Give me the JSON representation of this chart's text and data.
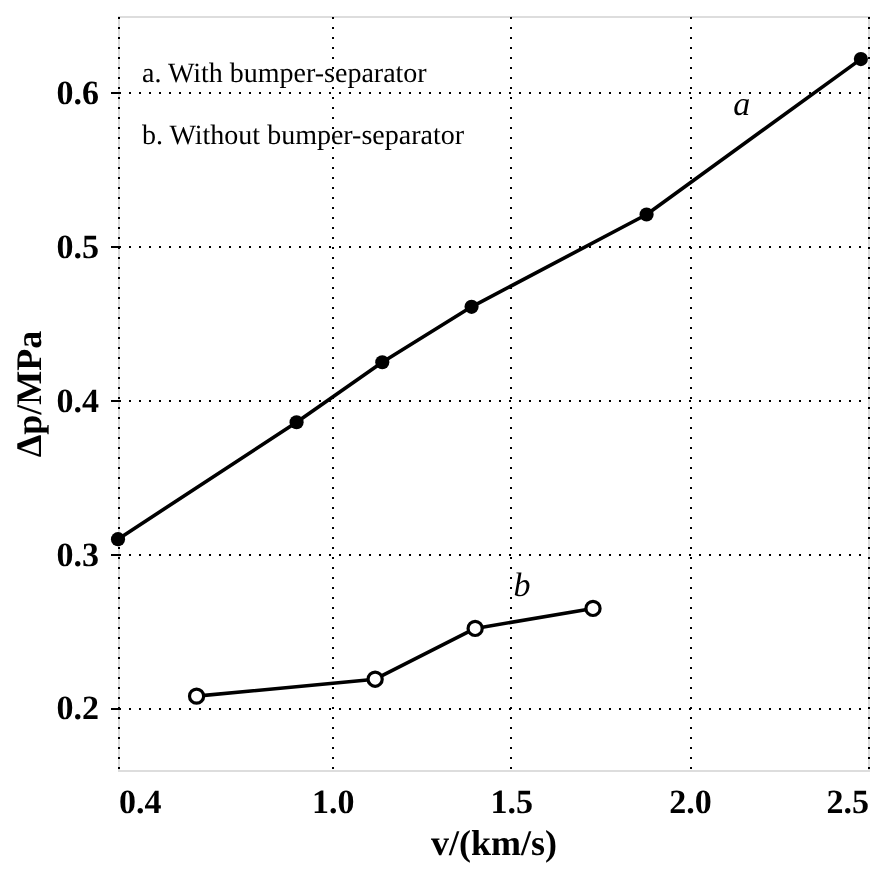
{
  "chart_data": {
    "type": "line",
    "xlabel": "v/(km/s)",
    "ylabel": "Δp/MPa",
    "xlim": [
      0.4,
      2.5
    ],
    "xticks": [
      0.4,
      {
        "value": 1.0,
        "label": "1.0"
      },
      1.5,
      {
        "value": 2.0,
        "label": "2.0"
      },
      2.5
    ],
    "ylim": [
      0.16,
      0.65
    ],
    "yticks": [
      0.2,
      0.3,
      0.4,
      0.5,
      0.6
    ],
    "grid": true,
    "marker": "circle",
    "line_style": "solid",
    "series": [
      {
        "name": "a",
        "color": "#000000",
        "x": [
          0.4,
          0.9,
          1.14,
          1.39,
          1.88,
          2.48
        ],
        "values": [
          0.31,
          0.386,
          0.425,
          0.461,
          0.521,
          0.622
        ]
      },
      {
        "name": "b",
        "color": "#000000",
        "x": [
          0.62,
          1.12,
          1.4,
          1.73
        ],
        "values": [
          0.208,
          0.219,
          0.252,
          0.265
        ]
      }
    ],
    "annotations": [
      "a. With bumper-separator",
      "b. Without bumper-separator"
    ]
  }
}
